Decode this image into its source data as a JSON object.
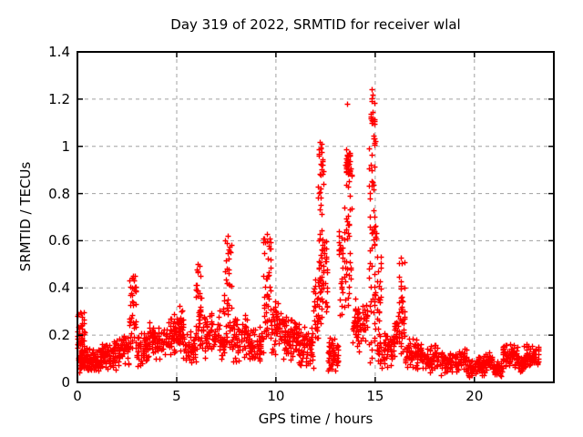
{
  "chart_data": {
    "type": "scatter",
    "title": "Day 319 of 2022, SRMTID for receiver wlal",
    "xlabel": "GPS time / hours",
    "ylabel": "SRMTID / TECUs",
    "xlim": [
      0,
      24
    ],
    "ylim": [
      0,
      1.4
    ],
    "xticks": [
      0,
      5,
      10,
      15,
      20
    ],
    "xtick_labels": [
      "0",
      "5",
      "10",
      "15",
      "20"
    ],
    "yticks": [
      0,
      0.2,
      0.4,
      0.6,
      0.8,
      1,
      1.2,
      1.4
    ],
    "ytick_labels": [
      "0",
      "0.2",
      "0.4",
      "0.6",
      "0.8",
      "1",
      "1.2",
      "1.4"
    ],
    "grid": true,
    "legend": "none",
    "marker": "plus",
    "colors": {
      "marker": "#ff0000",
      "grid": "#a0a0a0",
      "border": "#000000",
      "background": "#ffffff",
      "text": "#000000"
    },
    "notable_points": [
      [
        0.05,
        0.29
      ],
      [
        2.78,
        0.45
      ],
      [
        6.08,
        0.5
      ],
      [
        7.55,
        0.62
      ],
      [
        9.55,
        0.63
      ],
      [
        12.2,
        1.02
      ],
      [
        12.24,
        0.99
      ],
      [
        13.58,
        1.18
      ],
      [
        14.8,
        1.24
      ],
      [
        14.88,
        1.22
      ],
      [
        16.3,
        0.53
      ],
      [
        23.2,
        0.12
      ]
    ],
    "clusters": [
      [
        0.0,
        0.35,
        0.06,
        0.3,
        55,
        "u"
      ],
      [
        0.05,
        0.5,
        0.04,
        0.16,
        60,
        "c"
      ],
      [
        0.5,
        1.2,
        0.03,
        0.15,
        85,
        "c"
      ],
      [
        1.2,
        2.0,
        0.05,
        0.18,
        85,
        "c"
      ],
      [
        2.0,
        2.6,
        0.07,
        0.22,
        65,
        "c"
      ],
      [
        2.6,
        2.95,
        0.12,
        0.46,
        42,
        "u"
      ],
      [
        2.95,
        3.6,
        0.06,
        0.22,
        60,
        "c"
      ],
      [
        3.6,
        4.4,
        0.09,
        0.26,
        75,
        "c"
      ],
      [
        4.4,
        5.3,
        0.11,
        0.3,
        85,
        "c"
      ],
      [
        5.0,
        5.35,
        0.15,
        0.34,
        25,
        "c"
      ],
      [
        5.3,
        5.95,
        0.07,
        0.22,
        55,
        "c"
      ],
      [
        5.95,
        6.25,
        0.14,
        0.5,
        40,
        "u"
      ],
      [
        6.25,
        7.15,
        0.1,
        0.33,
        70,
        "c"
      ],
      [
        7.15,
        7.4,
        0.08,
        0.22,
        25,
        "c"
      ],
      [
        7.35,
        7.75,
        0.15,
        0.62,
        48,
        "u"
      ],
      [
        7.75,
        8.6,
        0.08,
        0.3,
        70,
        "c"
      ],
      [
        8.6,
        9.35,
        0.07,
        0.25,
        65,
        "c"
      ],
      [
        9.35,
        9.75,
        0.18,
        0.63,
        48,
        "u"
      ],
      [
        9.75,
        10.35,
        0.1,
        0.36,
        60,
        "c"
      ],
      [
        10.35,
        11.15,
        0.09,
        0.28,
        85,
        "c"
      ],
      [
        11.15,
        11.9,
        0.05,
        0.24,
        70,
        "c"
      ],
      [
        11.9,
        12.12,
        0.18,
        0.45,
        28,
        "u"
      ],
      [
        12.12,
        12.38,
        0.25,
        1.02,
        62,
        "u"
      ],
      [
        12.38,
        12.6,
        0.28,
        0.65,
        24,
        "u"
      ],
      [
        12.6,
        13.15,
        0.03,
        0.2,
        55,
        "c"
      ],
      [
        13.15,
        13.38,
        0.22,
        0.65,
        26,
        "u"
      ],
      [
        13.42,
        13.82,
        0.3,
        1.0,
        50,
        "u"
      ],
      [
        13.5,
        13.72,
        0.87,
        0.99,
        26,
        "c"
      ],
      [
        13.85,
        14.35,
        0.1,
        0.36,
        50,
        "c"
      ],
      [
        14.35,
        14.6,
        0.14,
        0.38,
        22,
        "c"
      ],
      [
        14.68,
        15.05,
        0.08,
        1.06,
        68,
        "u"
      ],
      [
        14.75,
        14.98,
        1.06,
        1.22,
        16,
        "u"
      ],
      [
        15.05,
        15.35,
        0.22,
        0.55,
        20,
        "u"
      ],
      [
        15.1,
        15.95,
        0.06,
        0.22,
        70,
        "c"
      ],
      [
        15.9,
        16.12,
        0.1,
        0.3,
        18,
        "c"
      ],
      [
        16.15,
        16.5,
        0.1,
        0.53,
        42,
        "u"
      ],
      [
        16.5,
        17.3,
        0.05,
        0.2,
        70,
        "c"
      ],
      [
        17.3,
        18.2,
        0.04,
        0.17,
        70,
        "c"
      ],
      [
        18.2,
        19.2,
        0.03,
        0.14,
        75,
        "c"
      ],
      [
        19.2,
        19.6,
        0.05,
        0.16,
        32,
        "c"
      ],
      [
        19.6,
        20.5,
        0.02,
        0.12,
        70,
        "c"
      ],
      [
        20.5,
        20.9,
        0.05,
        0.14,
        38,
        "c"
      ],
      [
        20.9,
        21.4,
        0.02,
        0.09,
        42,
        "c"
      ],
      [
        21.4,
        22.2,
        0.06,
        0.17,
        70,
        "c"
      ],
      [
        22.2,
        22.5,
        0.04,
        0.12,
        28,
        "c"
      ],
      [
        22.5,
        23.25,
        0.05,
        0.17,
        68,
        "c"
      ]
    ],
    "cluster_format": [
      "x_start_hours",
      "x_end_hours",
      "y_min_TECUs",
      "y_max_TECUs",
      "n_points",
      "distribution u=uniform c=center-weighted"
    ]
  }
}
